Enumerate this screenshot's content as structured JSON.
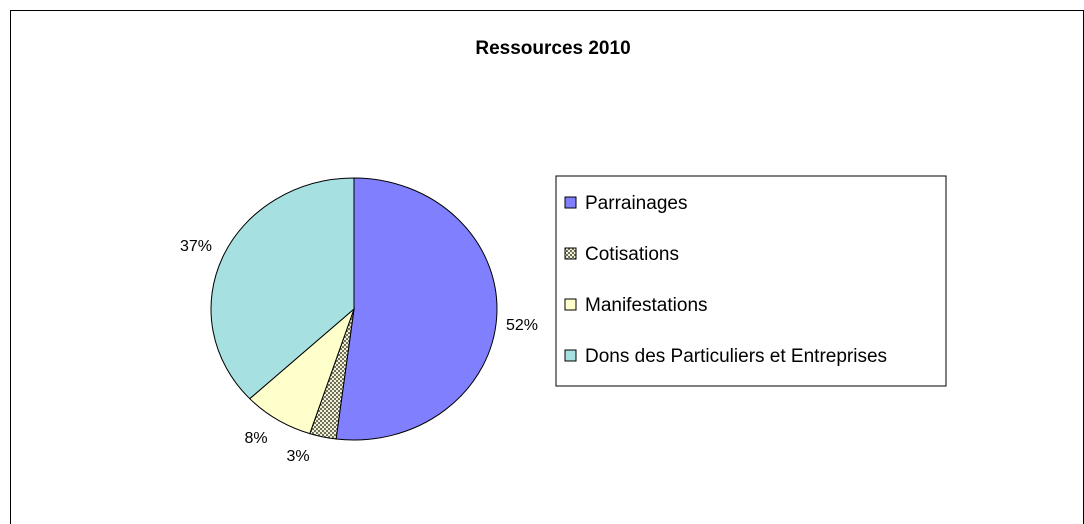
{
  "chart_data": {
    "type": "pie",
    "title": "Ressources 2010",
    "slices": [
      {
        "label": "Parrainages",
        "value": 52,
        "display": "52%",
        "color": "#8080ff",
        "pattern": "solid"
      },
      {
        "label": "Cotisations",
        "value": 3,
        "display": "3%",
        "color": "#c8c8a0",
        "pattern": "checker"
      },
      {
        "label": "Manifestations",
        "value": 8,
        "display": "8%",
        "color": "#ffffcc",
        "pattern": "solid"
      },
      {
        "label": "Dons des Particuliers et Entreprises",
        "value": 37,
        "display": "37%",
        "color": "#a6e0e0",
        "pattern": "solid"
      }
    ],
    "legend_position": "right",
    "start_angle_deg": 0,
    "direction": "clockwise"
  }
}
